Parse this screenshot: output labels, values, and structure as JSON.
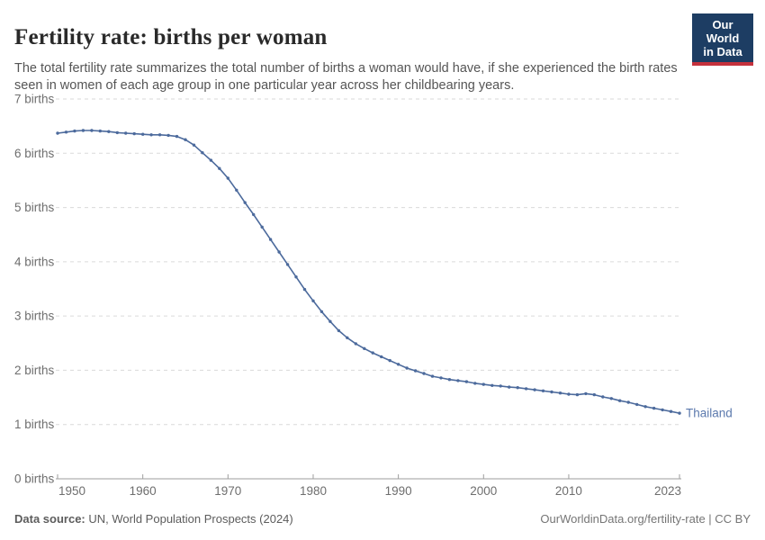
{
  "header": {
    "title": "Fertility rate: births per woman",
    "subtitle": "The total fertility rate summarizes the total number of births a woman would have, if she experienced the birth rates seen in women of each age group in one particular year across her childbearing years.",
    "logo": {
      "line1": "Our World",
      "line2": "in Data",
      "bg_color": "#1d3d63",
      "accent_color": "#c5313c"
    }
  },
  "chart_data": {
    "type": "line",
    "title": "Fertility rate: births per woman",
    "xlabel": "",
    "ylabel": "",
    "xlim": [
      1950,
      2023
    ],
    "ylim": [
      0,
      7
    ],
    "grid": "horizontal-dashed",
    "legend_position": "end-of-line-label",
    "x_ticks": [
      1950,
      1960,
      1970,
      1980,
      1990,
      2000,
      2010,
      2023
    ],
    "y_ticks": [
      {
        "value": 0,
        "label": "0 births"
      },
      {
        "value": 1,
        "label": "1 births"
      },
      {
        "value": 2,
        "label": "2 births"
      },
      {
        "value": 3,
        "label": "3 births"
      },
      {
        "value": 4,
        "label": "4 births"
      },
      {
        "value": 5,
        "label": "5 births"
      },
      {
        "value": 6,
        "label": "6 births"
      },
      {
        "value": 7,
        "label": "7 births"
      }
    ],
    "series": [
      {
        "name": "Thailand",
        "color": "#4c6a9c",
        "label_color": "#5b79ad",
        "x": [
          1950,
          1951,
          1952,
          1953,
          1954,
          1955,
          1956,
          1957,
          1958,
          1959,
          1960,
          1961,
          1962,
          1963,
          1964,
          1965,
          1966,
          1967,
          1968,
          1969,
          1970,
          1971,
          1972,
          1973,
          1974,
          1975,
          1976,
          1977,
          1978,
          1979,
          1980,
          1981,
          1982,
          1983,
          1984,
          1985,
          1986,
          1987,
          1988,
          1989,
          1990,
          1991,
          1992,
          1993,
          1994,
          1995,
          1996,
          1997,
          1998,
          1999,
          2000,
          2001,
          2002,
          2003,
          2004,
          2005,
          2006,
          2007,
          2008,
          2009,
          2010,
          2011,
          2012,
          2013,
          2014,
          2015,
          2016,
          2017,
          2018,
          2019,
          2020,
          2021,
          2022,
          2023
        ],
        "values": [
          6.37,
          6.39,
          6.41,
          6.42,
          6.42,
          6.41,
          6.4,
          6.38,
          6.37,
          6.36,
          6.35,
          6.34,
          6.34,
          6.33,
          6.31,
          6.25,
          6.15,
          6.01,
          5.87,
          5.72,
          5.54,
          5.32,
          5.09,
          4.87,
          4.64,
          4.41,
          4.18,
          3.95,
          3.72,
          3.49,
          3.28,
          3.08,
          2.9,
          2.73,
          2.6,
          2.49,
          2.4,
          2.32,
          2.25,
          2.18,
          2.11,
          2.04,
          1.99,
          1.94,
          1.89,
          1.86,
          1.83,
          1.81,
          1.79,
          1.76,
          1.74,
          1.72,
          1.71,
          1.69,
          1.68,
          1.66,
          1.64,
          1.62,
          1.6,
          1.58,
          1.56,
          1.55,
          1.57,
          1.55,
          1.51,
          1.48,
          1.44,
          1.41,
          1.37,
          1.33,
          1.3,
          1.27,
          1.24,
          1.21
        ]
      }
    ],
    "style": {
      "gridline_color": "#dadada",
      "axis_color": "#9e9e9e",
      "tick_label_color": "#6e6e6e"
    }
  },
  "footer": {
    "source_label": "Data source:",
    "source_text": " UN, World Population Prospects (2024)",
    "citation": "OurWorldinData.org/fertility-rate | CC BY"
  }
}
